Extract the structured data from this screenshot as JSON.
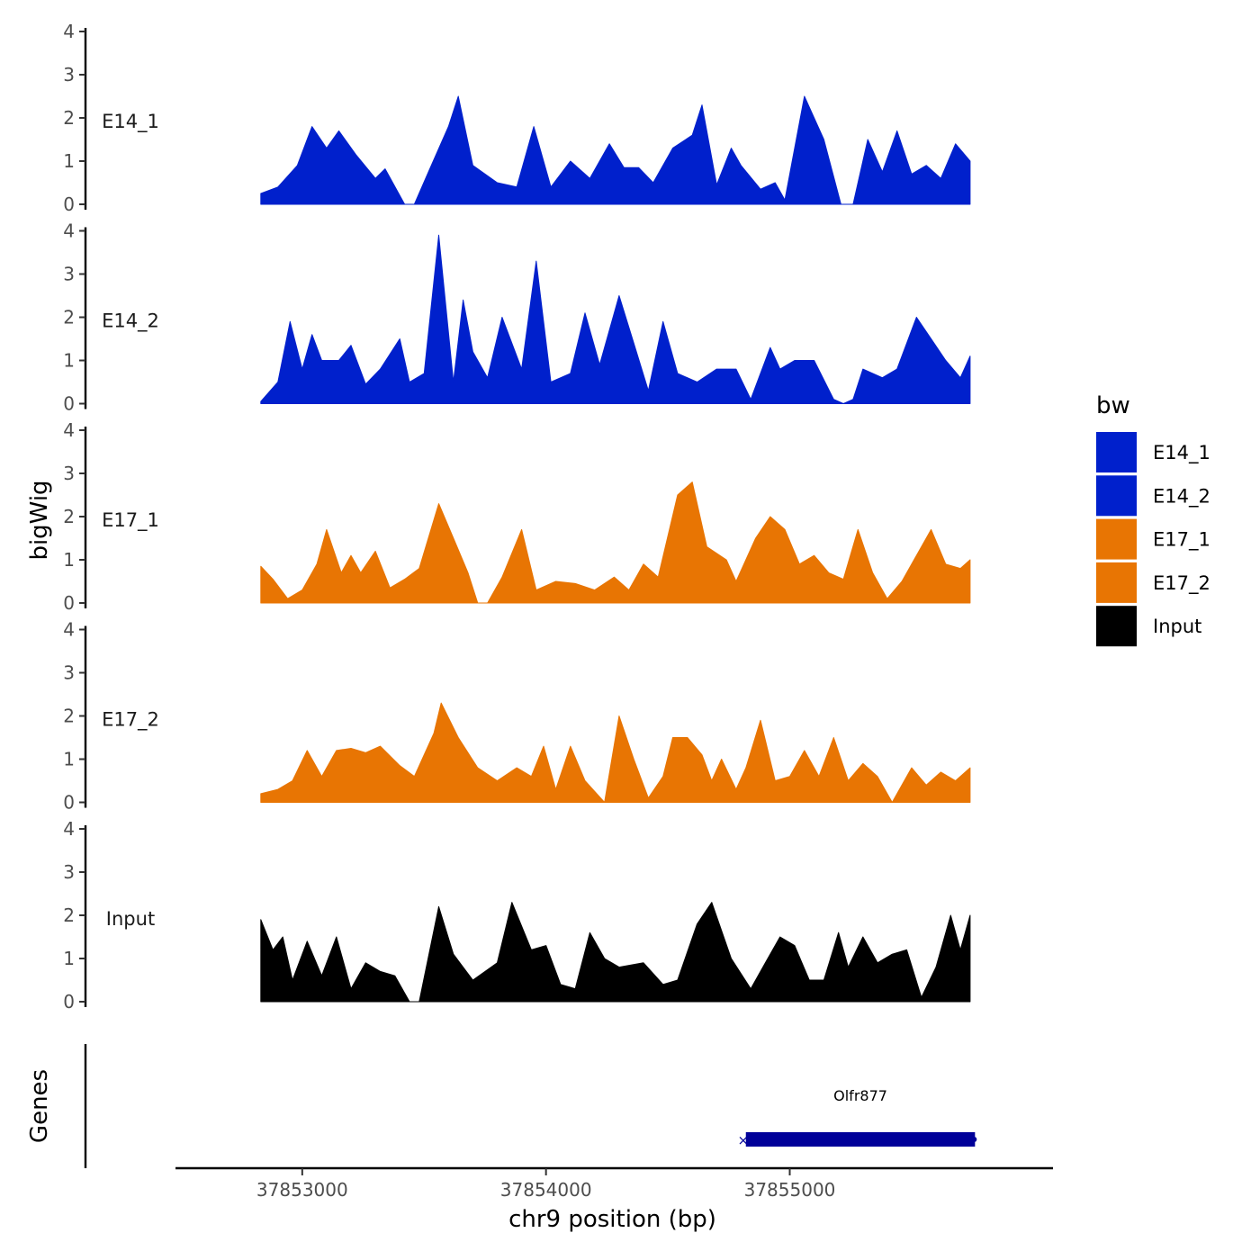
{
  "chart_data": {
    "type": "area",
    "chromosome": "chr9",
    "xlabel": "chr9 position (bp)",
    "ylabel": "bigWig",
    "genes_label": "Genes",
    "xlim": [
      37852480,
      37856080
    ],
    "x_ticks": [
      37853000,
      37854000,
      37855000
    ],
    "x_tick_labels": [
      "37853000",
      "37854000",
      "37855000"
    ],
    "ylim": [
      0,
      4
    ],
    "y_ticks": [
      0,
      1,
      2,
      3,
      4
    ],
    "y_tick_labels": [
      "0",
      "1",
      "2",
      "3",
      "4"
    ],
    "legend": {
      "title": "bw",
      "entries": [
        {
          "label": "E14_1",
          "color": "#0020CC"
        },
        {
          "label": "E14_2",
          "color": "#0020CC"
        },
        {
          "label": "E17_1",
          "color": "#E87503"
        },
        {
          "label": "E17_2",
          "color": "#E87503"
        },
        {
          "label": "Input",
          "color": "#000000"
        }
      ]
    },
    "series": [
      {
        "name": "E14_1",
        "color": "#0020CC",
        "points": [
          [
            37852830,
            0.25
          ],
          [
            37852900,
            0.4
          ],
          [
            37852980,
            0.9
          ],
          [
            37853040,
            1.8
          ],
          [
            37853100,
            1.3
          ],
          [
            37853150,
            1.7
          ],
          [
            37853220,
            1.15
          ],
          [
            37853300,
            0.6
          ],
          [
            37853340,
            0.82
          ],
          [
            37853420,
            0.0
          ],
          [
            37853460,
            0.0
          ],
          [
            37853520,
            0.78
          ],
          [
            37853600,
            1.8
          ],
          [
            37853640,
            2.5
          ],
          [
            37853700,
            0.9
          ],
          [
            37853800,
            0.5
          ],
          [
            37853880,
            0.4
          ],
          [
            37853950,
            1.8
          ],
          [
            37854020,
            0.4
          ],
          [
            37854100,
            1.0
          ],
          [
            37854180,
            0.6
          ],
          [
            37854260,
            1.4
          ],
          [
            37854320,
            0.85
          ],
          [
            37854380,
            0.85
          ],
          [
            37854440,
            0.5
          ],
          [
            37854520,
            1.3
          ],
          [
            37854600,
            1.6
          ],
          [
            37854640,
            2.3
          ],
          [
            37854700,
            0.45
          ],
          [
            37854760,
            1.3
          ],
          [
            37854800,
            0.9
          ],
          [
            37854880,
            0.35
          ],
          [
            37854940,
            0.5
          ],
          [
            37854980,
            0.1
          ],
          [
            37855060,
            2.5
          ],
          [
            37855140,
            1.5
          ],
          [
            37855210,
            0.0
          ],
          [
            37855260,
            0.0
          ],
          [
            37855320,
            1.5
          ],
          [
            37855380,
            0.75
          ],
          [
            37855440,
            1.7
          ],
          [
            37855500,
            0.7
          ],
          [
            37855560,
            0.9
          ],
          [
            37855620,
            0.6
          ],
          [
            37855680,
            1.4
          ],
          [
            37855740,
            1.0
          ]
        ]
      },
      {
        "name": "E14_2",
        "color": "#0020CC",
        "points": [
          [
            37852830,
            0.05
          ],
          [
            37852900,
            0.5
          ],
          [
            37852950,
            1.9
          ],
          [
            37853000,
            0.8
          ],
          [
            37853040,
            1.6
          ],
          [
            37853080,
            1.0
          ],
          [
            37853150,
            1.0
          ],
          [
            37853200,
            1.35
          ],
          [
            37853260,
            0.45
          ],
          [
            37853320,
            0.8
          ],
          [
            37853400,
            1.5
          ],
          [
            37853440,
            0.5
          ],
          [
            37853500,
            0.7
          ],
          [
            37853560,
            3.9
          ],
          [
            37853620,
            0.5
          ],
          [
            37853660,
            2.4
          ],
          [
            37853700,
            1.2
          ],
          [
            37853760,
            0.6
          ],
          [
            37853820,
            2.0
          ],
          [
            37853900,
            0.8
          ],
          [
            37853960,
            3.3
          ],
          [
            37854020,
            0.5
          ],
          [
            37854100,
            0.7
          ],
          [
            37854160,
            2.1
          ],
          [
            37854220,
            0.9
          ],
          [
            37854300,
            2.5
          ],
          [
            37854360,
            1.4
          ],
          [
            37854420,
            0.3
          ],
          [
            37854480,
            1.9
          ],
          [
            37854540,
            0.7
          ],
          [
            37854620,
            0.5
          ],
          [
            37854700,
            0.8
          ],
          [
            37854780,
            0.8
          ],
          [
            37854840,
            0.1
          ],
          [
            37854920,
            1.3
          ],
          [
            37854960,
            0.8
          ],
          [
            37855020,
            1.0
          ],
          [
            37855100,
            1.0
          ],
          [
            37855180,
            0.1
          ],
          [
            37855220,
            0.0
          ],
          [
            37855260,
            0.1
          ],
          [
            37855300,
            0.8
          ],
          [
            37855380,
            0.6
          ],
          [
            37855440,
            0.8
          ],
          [
            37855520,
            2.0
          ],
          [
            37855580,
            1.5
          ],
          [
            37855640,
            1.0
          ],
          [
            37855700,
            0.6
          ],
          [
            37855740,
            1.1
          ]
        ]
      },
      {
        "name": "E17_1",
        "color": "#E87503",
        "points": [
          [
            37852830,
            0.85
          ],
          [
            37852880,
            0.55
          ],
          [
            37852940,
            0.1
          ],
          [
            37853000,
            0.3
          ],
          [
            37853060,
            0.9
          ],
          [
            37853100,
            1.7
          ],
          [
            37853160,
            0.7
          ],
          [
            37853200,
            1.1
          ],
          [
            37853240,
            0.7
          ],
          [
            37853300,
            1.2
          ],
          [
            37853360,
            0.35
          ],
          [
            37853420,
            0.55
          ],
          [
            37853480,
            0.8
          ],
          [
            37853560,
            2.3
          ],
          [
            37853620,
            1.5
          ],
          [
            37853680,
            0.7
          ],
          [
            37853720,
            0.0
          ],
          [
            37853760,
            0.0
          ],
          [
            37853820,
            0.6
          ],
          [
            37853900,
            1.7
          ],
          [
            37853960,
            0.3
          ],
          [
            37854040,
            0.5
          ],
          [
            37854120,
            0.45
          ],
          [
            37854200,
            0.3
          ],
          [
            37854280,
            0.6
          ],
          [
            37854340,
            0.3
          ],
          [
            37854400,
            0.9
          ],
          [
            37854460,
            0.6
          ],
          [
            37854540,
            2.5
          ],
          [
            37854600,
            2.8
          ],
          [
            37854660,
            1.3
          ],
          [
            37854740,
            1.0
          ],
          [
            37854780,
            0.5
          ],
          [
            37854860,
            1.5
          ],
          [
            37854920,
            2.0
          ],
          [
            37854980,
            1.7
          ],
          [
            37855040,
            0.9
          ],
          [
            37855100,
            1.1
          ],
          [
            37855160,
            0.7
          ],
          [
            37855220,
            0.55
          ],
          [
            37855280,
            1.7
          ],
          [
            37855340,
            0.7
          ],
          [
            37855400,
            0.1
          ],
          [
            37855460,
            0.5
          ],
          [
            37855520,
            1.1
          ],
          [
            37855580,
            1.7
          ],
          [
            37855640,
            0.9
          ],
          [
            37855700,
            0.8
          ],
          [
            37855740,
            1.0
          ]
        ]
      },
      {
        "name": "E17_2",
        "color": "#E87503",
        "points": [
          [
            37852830,
            0.2
          ],
          [
            37852900,
            0.3
          ],
          [
            37852960,
            0.5
          ],
          [
            37853020,
            1.2
          ],
          [
            37853080,
            0.6
          ],
          [
            37853140,
            1.2
          ],
          [
            37853200,
            1.25
          ],
          [
            37853260,
            1.15
          ],
          [
            37853320,
            1.3
          ],
          [
            37853400,
            0.85
          ],
          [
            37853460,
            0.6
          ],
          [
            37853540,
            1.6
          ],
          [
            37853570,
            2.3
          ],
          [
            37853640,
            1.5
          ],
          [
            37853720,
            0.8
          ],
          [
            37853800,
            0.5
          ],
          [
            37853880,
            0.8
          ],
          [
            37853940,
            0.6
          ],
          [
            37853990,
            1.3
          ],
          [
            37854040,
            0.3
          ],
          [
            37854100,
            1.3
          ],
          [
            37854160,
            0.5
          ],
          [
            37854240,
            0.0
          ],
          [
            37854300,
            2.0
          ],
          [
            37854360,
            1.0
          ],
          [
            37854420,
            0.1
          ],
          [
            37854480,
            0.6
          ],
          [
            37854520,
            1.5
          ],
          [
            37854580,
            1.5
          ],
          [
            37854640,
            1.1
          ],
          [
            37854680,
            0.5
          ],
          [
            37854720,
            1.0
          ],
          [
            37854780,
            0.3
          ],
          [
            37854820,
            0.8
          ],
          [
            37854880,
            1.9
          ],
          [
            37854940,
            0.5
          ],
          [
            37855000,
            0.6
          ],
          [
            37855060,
            1.2
          ],
          [
            37855120,
            0.6
          ],
          [
            37855180,
            1.5
          ],
          [
            37855240,
            0.5
          ],
          [
            37855300,
            0.9
          ],
          [
            37855360,
            0.6
          ],
          [
            37855420,
            0.0
          ],
          [
            37855500,
            0.8
          ],
          [
            37855560,
            0.4
          ],
          [
            37855620,
            0.7
          ],
          [
            37855680,
            0.5
          ],
          [
            37855740,
            0.8
          ]
        ]
      },
      {
        "name": "Input",
        "color": "#000000",
        "points": [
          [
            37852830,
            1.9
          ],
          [
            37852880,
            1.2
          ],
          [
            37852920,
            1.5
          ],
          [
            37852960,
            0.5
          ],
          [
            37853020,
            1.4
          ],
          [
            37853080,
            0.6
          ],
          [
            37853140,
            1.5
          ],
          [
            37853200,
            0.3
          ],
          [
            37853260,
            0.9
          ],
          [
            37853320,
            0.7
          ],
          [
            37853380,
            0.6
          ],
          [
            37853440,
            0.0
          ],
          [
            37853480,
            0.0
          ],
          [
            37853560,
            2.2
          ],
          [
            37853620,
            1.1
          ],
          [
            37853700,
            0.5
          ],
          [
            37853800,
            0.9
          ],
          [
            37853860,
            2.3
          ],
          [
            37853940,
            1.2
          ],
          [
            37854000,
            1.3
          ],
          [
            37854060,
            0.4
          ],
          [
            37854120,
            0.3
          ],
          [
            37854180,
            1.6
          ],
          [
            37854240,
            1.0
          ],
          [
            37854300,
            0.8
          ],
          [
            37854400,
            0.9
          ],
          [
            37854480,
            0.4
          ],
          [
            37854540,
            0.5
          ],
          [
            37854620,
            1.8
          ],
          [
            37854680,
            2.3
          ],
          [
            37854760,
            1.0
          ],
          [
            37854840,
            0.3
          ],
          [
            37854900,
            0.9
          ],
          [
            37854960,
            1.5
          ],
          [
            37855020,
            1.3
          ],
          [
            37855080,
            0.5
          ],
          [
            37855140,
            0.5
          ],
          [
            37855200,
            1.6
          ],
          [
            37855240,
            0.8
          ],
          [
            37855300,
            1.5
          ],
          [
            37855360,
            0.9
          ],
          [
            37855420,
            1.1
          ],
          [
            37855480,
            1.2
          ],
          [
            37855540,
            0.1
          ],
          [
            37855600,
            0.8
          ],
          [
            37855660,
            2.0
          ],
          [
            37855700,
            1.2
          ],
          [
            37855740,
            2.0
          ]
        ]
      }
    ],
    "genes": [
      {
        "name": "Olfr877",
        "start": 37854820,
        "end": 37855760,
        "color": "#000099"
      }
    ]
  }
}
